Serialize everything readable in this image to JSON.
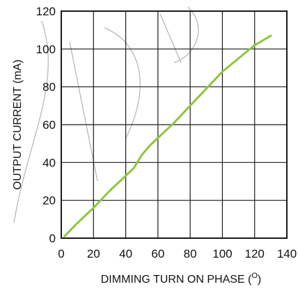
{
  "chart_data": {
    "type": "line",
    "xlabel": "DIMMING TURN ON PHASE (",
    "xlabel_sup": "O",
    "xlabel_close": ")",
    "ylabel": "OUTPUT CURRENT (mA)",
    "xlim": [
      0,
      140
    ],
    "ylim": [
      0,
      120
    ],
    "x_ticks": [
      "0",
      "20",
      "40",
      "60",
      "80",
      "100",
      "120",
      "140"
    ],
    "y_ticks": [
      "0",
      "20",
      "40",
      "60",
      "80",
      "100",
      "120"
    ],
    "x_grid_step": 20,
    "y_grid_step": 20,
    "grid": true,
    "series": [
      {
        "color": "#8cc63f",
        "x": [
          2,
          10,
          20,
          30,
          40,
          45,
          50,
          55,
          60,
          70,
          80,
          90,
          100,
          110,
          120,
          130
        ],
        "y": [
          1,
          8,
          16,
          25,
          33,
          37,
          44,
          49,
          53,
          61,
          70,
          79,
          88,
          95,
          102,
          107
        ]
      }
    ]
  }
}
